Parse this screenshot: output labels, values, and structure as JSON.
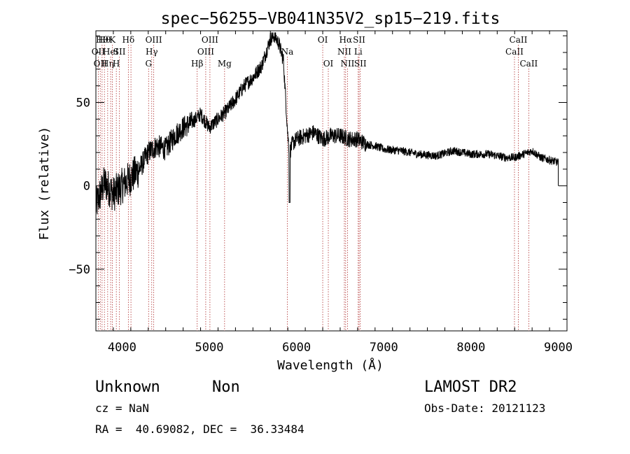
{
  "chart_data": {
    "type": "line",
    "title": "spec−56255−VB041N35V2_sp15−219.fits",
    "xlabel": "Wavelength (Å)",
    "ylabel": "Flux (relative)",
    "xlim": [
      3700,
      9100
    ],
    "ylim": [
      -87,
      93
    ],
    "x_ticks": [
      4000,
      5000,
      6000,
      7000,
      8000,
      9000
    ],
    "x_tick_labels": [
      "4000",
      "5000",
      "6000",
      "7000",
      "8000",
      "9000"
    ],
    "y_ticks": [
      -50,
      0,
      50
    ],
    "y_tick_labels": [
      "−50",
      "0",
      "50"
    ],
    "spectrum_range": [
      3700,
      9000
    ],
    "series": [
      {
        "x": [
          3700,
          3800,
          3900,
          4000,
          4100,
          4200,
          4300,
          4400,
          4500,
          4600,
          4700,
          4800,
          4900,
          5000,
          5100,
          5200,
          5300,
          5400,
          5500,
          5600,
          5650,
          5700,
          5750,
          5800,
          5850,
          5900,
          5920,
          5950,
          6000,
          6100,
          6200,
          6300,
          6400,
          6500,
          6600,
          6700,
          6800,
          6900,
          7000,
          7200,
          7400,
          7600,
          7800,
          8000,
          8200,
          8400,
          8500,
          8600,
          8700,
          8800,
          9000
        ],
        "values": [
          -12,
          2,
          -5,
          0,
          5,
          10,
          20,
          24,
          22,
          30,
          35,
          38,
          43,
          35,
          40,
          45,
          52,
          60,
          65,
          72,
          80,
          88,
          90,
          85,
          75,
          30,
          20,
          25,
          28,
          30,
          32,
          28,
          30,
          30,
          28,
          28,
          25,
          24,
          22,
          21,
          19,
          18,
          21,
          19,
          19,
          17,
          17,
          19,
          21,
          17,
          14
        ]
      }
    ],
    "lines": [
      {
        "wavelength": 3727,
        "labels": [
          "OII"
        ],
        "row": 2
      },
      {
        "wavelength": 3750,
        "labels": [
          "OII"
        ],
        "row": 3
      },
      {
        "wavelength": 3771,
        "labels": [
          "Hθ"
        ],
        "row": 1
      },
      {
        "wavelength": 3798,
        "labels": [
          "Hθ"
        ],
        "row": 1
      },
      {
        "wavelength": 3835,
        "labels": [
          "Hη"
        ],
        "row": 3
      },
      {
        "wavelength": 3869,
        "labels": [
          "HeI"
        ],
        "row": 2
      },
      {
        "wavelength": 3889,
        "labels": [
          "K"
        ],
        "row": 1
      },
      {
        "wavelength": 3934,
        "labels": [
          "H"
        ],
        "row": 3
      },
      {
        "wavelength": 3970,
        "labels": [
          "SII"
        ],
        "row": 2
      },
      {
        "wavelength": 4072,
        "labels": [
          "Hδ"
        ],
        "row": 1
      },
      {
        "wavelength": 4102,
        "labels": [],
        "row": 1
      },
      {
        "wavelength": 4304,
        "labels": [
          "G"
        ],
        "row": 3
      },
      {
        "wavelength": 4340,
        "labels": [
          "Hγ"
        ],
        "row": 2
      },
      {
        "wavelength": 4363,
        "labels": [
          "OIII"
        ],
        "row": 1
      },
      {
        "wavelength": 4861,
        "labels": [
          "Hβ"
        ],
        "row": 3
      },
      {
        "wavelength": 4959,
        "labels": [
          "OIII"
        ],
        "row": 2
      },
      {
        "wavelength": 5007,
        "labels": [
          "OIII"
        ],
        "row": 1
      },
      {
        "wavelength": 5175,
        "labels": [
          "Mg"
        ],
        "row": 3
      },
      {
        "wavelength": 5894,
        "labels": [
          "Na"
        ],
        "row": 2
      },
      {
        "wavelength": 6300,
        "labels": [
          "OI"
        ],
        "row": 1
      },
      {
        "wavelength": 6364,
        "labels": [
          "OI"
        ],
        "row": 3
      },
      {
        "wavelength": 6548,
        "labels": [
          "NII"
        ],
        "row": 2
      },
      {
        "wavelength": 6563,
        "labels": [
          "Hα"
        ],
        "row": 1
      },
      {
        "wavelength": 6584,
        "labels": [
          "NII"
        ],
        "row": 3
      },
      {
        "wavelength": 6707,
        "labels": [
          "Li"
        ],
        "row": 2
      },
      {
        "wavelength": 6717,
        "labels": [
          "SII"
        ],
        "row": 1
      },
      {
        "wavelength": 6731,
        "labels": [
          "SII"
        ],
        "row": 3
      },
      {
        "wavelength": 8498,
        "labels": [
          "CaII"
        ],
        "row": 2
      },
      {
        "wavelength": 8542,
        "labels": [
          "CaII"
        ],
        "row": 1
      },
      {
        "wavelength": 8662,
        "labels": [
          "CaII"
        ],
        "row": 3
      }
    ],
    "line_color": "#b03030",
    "spectrum_color": "#000000"
  },
  "info": {
    "classification": "Unknown",
    "subclass": "Non",
    "survey": "LAMOST DR2",
    "cz": "cz = NaN",
    "obs_date": "Obs-Date: 20121123",
    "coords": "RA =  40.69082, DEC =  36.33484"
  }
}
